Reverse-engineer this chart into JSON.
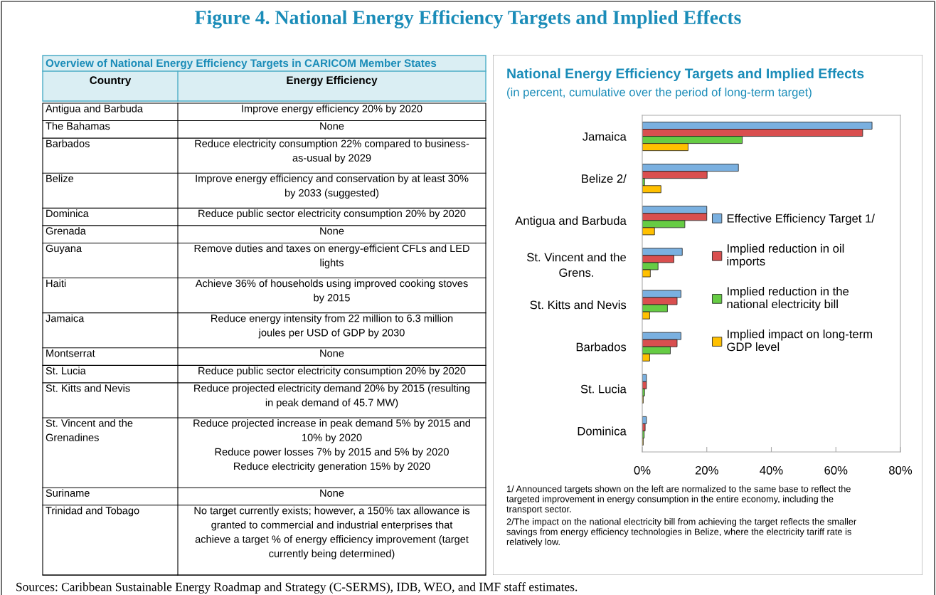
{
  "chart_data": [
    {
      "type": "other",
      "title": "Figure 4. National Energy Efficiency Targets and Implied Effects",
      "annotations": [
        "Sources: Caribbean Sustainable Energy Roadmap and Strategy (C-SERMS), IDB, WEO, and IMF staff estimates."
      ]
    },
    {
      "type": "other",
      "title": "Overview of National Energy Efficiency Targets in CARICOM Member States",
      "categories": [
        "Country",
        "Energy Efficiency"
      ],
      "y_categories": [
        "Antigua and Barbuda",
        "The Bahamas",
        "Barbados",
        "Belize",
        "Dominica",
        "Grenada",
        "Guyana",
        "Haiti",
        "Jamaica",
        "Montserrat",
        "St. Lucia",
        "St. Kitts and Nevis",
        "St. Vincent and the\nGrenadines",
        "Suriname",
        "Trinidad and Tobago"
      ],
      "cell_labels": [
        [
          "Improve energy efficiency 20% by 2020"
        ],
        [
          "None"
        ],
        [
          "Reduce electricity consumption 22% compared to business-\nas-usual by 2029"
        ],
        [
          "Improve energy efficiency and conservation by at least 30%\nby 2033 (suggested)"
        ],
        [
          "Reduce public sector electricity consumption 20% by 2020"
        ],
        [
          "None"
        ],
        [
          "Remove duties and taxes on energy-efficient CFLs and LED\nlights"
        ],
        [
          "Achieve 36% of households using improved cooking stoves\nby 2015"
        ],
        [
          "Reduce energy intensity from 22 million to 6.3 million\njoules per USD of GDP by 2030"
        ],
        [
          "None"
        ],
        [
          "Reduce public sector electricity consumption 20% by 2020"
        ],
        [
          "Reduce projected electricity demand 20% by 2015 (resulting\nin peak demand of 45.7 MW)"
        ],
        [
          "Reduce projected increase in peak demand 5% by 2015 and\n10% by 2020\nReduce power losses 7% by 2015 and 5% by 2020\nReduce electricity generation 15% by 2020"
        ],
        [
          "None"
        ],
        [
          "No target currently exists; however, a 150% tax allowance is\ngranted to commercial and industrial enterprises that\nachieve a target % of energy efficiency improvement (target\ncurrently being determined)"
        ]
      ]
    },
    {
      "type": "bar",
      "orientation": "horizontal",
      "title": "National Energy Efficiency Targets and Implied Effects",
      "subtitle": "(in percent, cumulative over the period of long-term target)",
      "categories": [
        "Jamaica",
        "Belize 2/",
        "Antigua and Barbuda",
        "St. Vincent and the\nGrens.",
        "St. Kitts and Nevis",
        "Barbados",
        "St. Lucia",
        "Dominica"
      ],
      "series": [
        {
          "name": "Effective Efficiency Target 1/",
          "color": "#7ab0e0",
          "values": [
            71.2,
            29.8,
            20.0,
            12.4,
            12.0,
            12.0,
            1.3,
            1.3
          ]
        },
        {
          "name": "Implied reduction in oil\nimports",
          "color": "#d94f4f",
          "values": [
            68.3,
            20.1,
            20.0,
            9.8,
            10.8,
            10.8,
            1.3,
            0.9
          ]
        },
        {
          "name": "Implied reduction in the\nnational electricity bill",
          "color": "#66cc44",
          "values": [
            31.0,
            0.7,
            13.2,
            4.9,
            7.8,
            8.7,
            0.7,
            0.6
          ]
        },
        {
          "name": "Implied impact on long-term\nGDP level",
          "color": "#ffc000",
          "values": [
            14.2,
            5.8,
            3.8,
            2.5,
            2.3,
            2.3,
            0.3,
            0.3
          ]
        }
      ],
      "xlim": [
        0,
        80
      ],
      "xticks": [
        {
          "value": 0,
          "label": "0%"
        },
        {
          "value": 20,
          "label": "20%"
        },
        {
          "value": 40,
          "label": "40%"
        },
        {
          "value": 60,
          "label": "60%"
        },
        {
          "value": 80,
          "label": "80%"
        }
      ],
      "grid": false,
      "legend": "right",
      "annotations": [
        "1/ Announced targets shown on the left are normalized to the same base to reflect the\ntargeted improvement in energy consumption in the entire economy, including the\ntransport sector.",
        "2/The impact on the national electricity bill from achieving the target reflects the smaller\nsavings from energy efficiency technologies in Belize, where the electricity tariff rate is\nrelatively low."
      ]
    }
  ]
}
